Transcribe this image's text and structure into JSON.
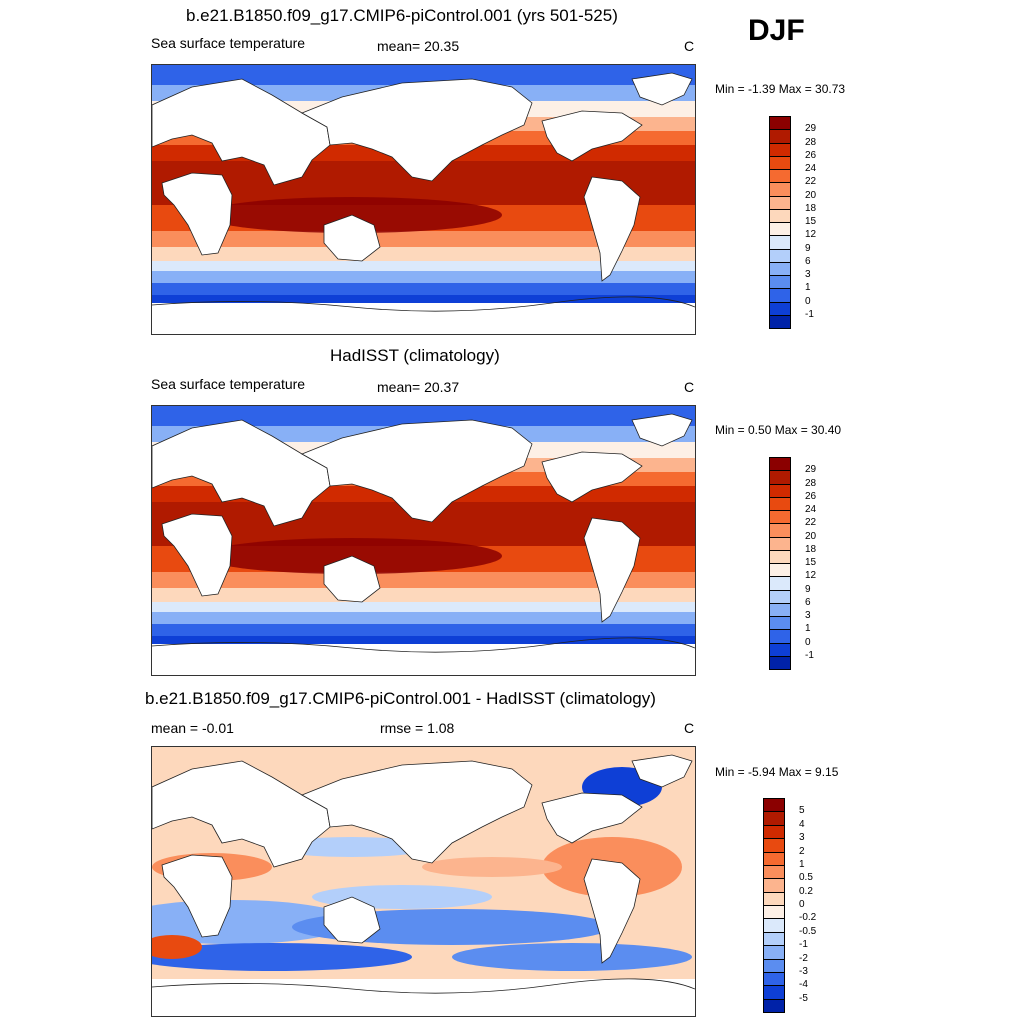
{
  "season": "DJF",
  "panels": [
    {
      "title": "b.e21.B1850.f09_g17.CMIP6-piControl.001 (yrs 501-525)",
      "left_label": "Sea surface temperature",
      "center_label": "mean=  20.35",
      "units": "C",
      "minmax": "Min =  -1.39 Max =  30.73",
      "colorbar": {
        "labels": [
          "29",
          "28",
          "26",
          "24",
          "22",
          "20",
          "18",
          "15",
          "12",
          "9",
          "6",
          "3",
          "1",
          "0",
          "-1"
        ],
        "colors": [
          "#8b0000",
          "#b01a00",
          "#d02a00",
          "#e84a10",
          "#f56a30",
          "#fa8e5c",
          "#fcb48e",
          "#fdd8bc",
          "#fdf0e6",
          "#dbe9fb",
          "#b3cffa",
          "#88b0f6",
          "#5b8df0",
          "#2f63e8",
          "#0e3fd6",
          "#0022a8"
        ]
      },
      "chart_data": {
        "type": "heatmap",
        "title": "b.e21.B1850.f09_g17.CMIP6-piControl.001 (yrs 501-525)",
        "variable": "Sea surface temperature",
        "units": "C",
        "mean": 20.35,
        "min": -1.39,
        "max": 30.73,
        "levels": [
          -1,
          0,
          1,
          3,
          6,
          9,
          12,
          15,
          18,
          20,
          22,
          24,
          26,
          28,
          29
        ]
      }
    },
    {
      "title": "HadISST (climatology)",
      "left_label": "Sea surface temperature",
      "center_label": "mean=  20.37",
      "units": "C",
      "minmax": "Min =   0.50 Max =  30.40",
      "colorbar": {
        "labels": [
          "29",
          "28",
          "26",
          "24",
          "22",
          "20",
          "18",
          "15",
          "12",
          "9",
          "6",
          "3",
          "1",
          "0",
          "-1"
        ],
        "colors": [
          "#8b0000",
          "#b01a00",
          "#d02a00",
          "#e84a10",
          "#f56a30",
          "#fa8e5c",
          "#fcb48e",
          "#fdd8bc",
          "#fdf0e6",
          "#dbe9fb",
          "#b3cffa",
          "#88b0f6",
          "#5b8df0",
          "#2f63e8",
          "#0e3fd6",
          "#0022a8"
        ]
      },
      "chart_data": {
        "type": "heatmap",
        "title": "HadISST (climatology)",
        "variable": "Sea surface temperature",
        "units": "C",
        "mean": 20.37,
        "min": 0.5,
        "max": 30.4,
        "levels": [
          -1,
          0,
          1,
          3,
          6,
          9,
          12,
          15,
          18,
          20,
          22,
          24,
          26,
          28,
          29
        ]
      }
    },
    {
      "title": "b.e21.B1850.f09_g17.CMIP6-piControl.001 - HadISST (climatology)",
      "left_label": "mean =  -0.01",
      "center_label": "rmse =    1.08",
      "units": "C",
      "minmax": "Min =  -5.94 Max =   9.15",
      "colorbar": {
        "labels": [
          "5",
          "4",
          "3",
          "2",
          "1",
          "0.5",
          "0.2",
          "0",
          "-0.2",
          "-0.5",
          "-1",
          "-2",
          "-3",
          "-4",
          "-5"
        ],
        "colors": [
          "#8b0000",
          "#b01a00",
          "#d02a00",
          "#e84a10",
          "#f56a30",
          "#fa8e5c",
          "#fcb48e",
          "#fdd8bc",
          "#fdf0e6",
          "#dbe9fb",
          "#b3cffa",
          "#88b0f6",
          "#5b8df0",
          "#2f63e8",
          "#0e3fd6",
          "#0022a8"
        ]
      },
      "chart_data": {
        "type": "heatmap",
        "title": "b.e21.B1850.f09_g17.CMIP6-piControl.001 - HadISST (climatology)",
        "units": "C",
        "mean": -0.01,
        "rmse": 1.08,
        "min": -5.94,
        "max": 9.15,
        "levels": [
          -5,
          -4,
          -3,
          -2,
          -1,
          -0.5,
          -0.2,
          0,
          0.2,
          0.5,
          1,
          2,
          3,
          4,
          5
        ]
      }
    }
  ]
}
